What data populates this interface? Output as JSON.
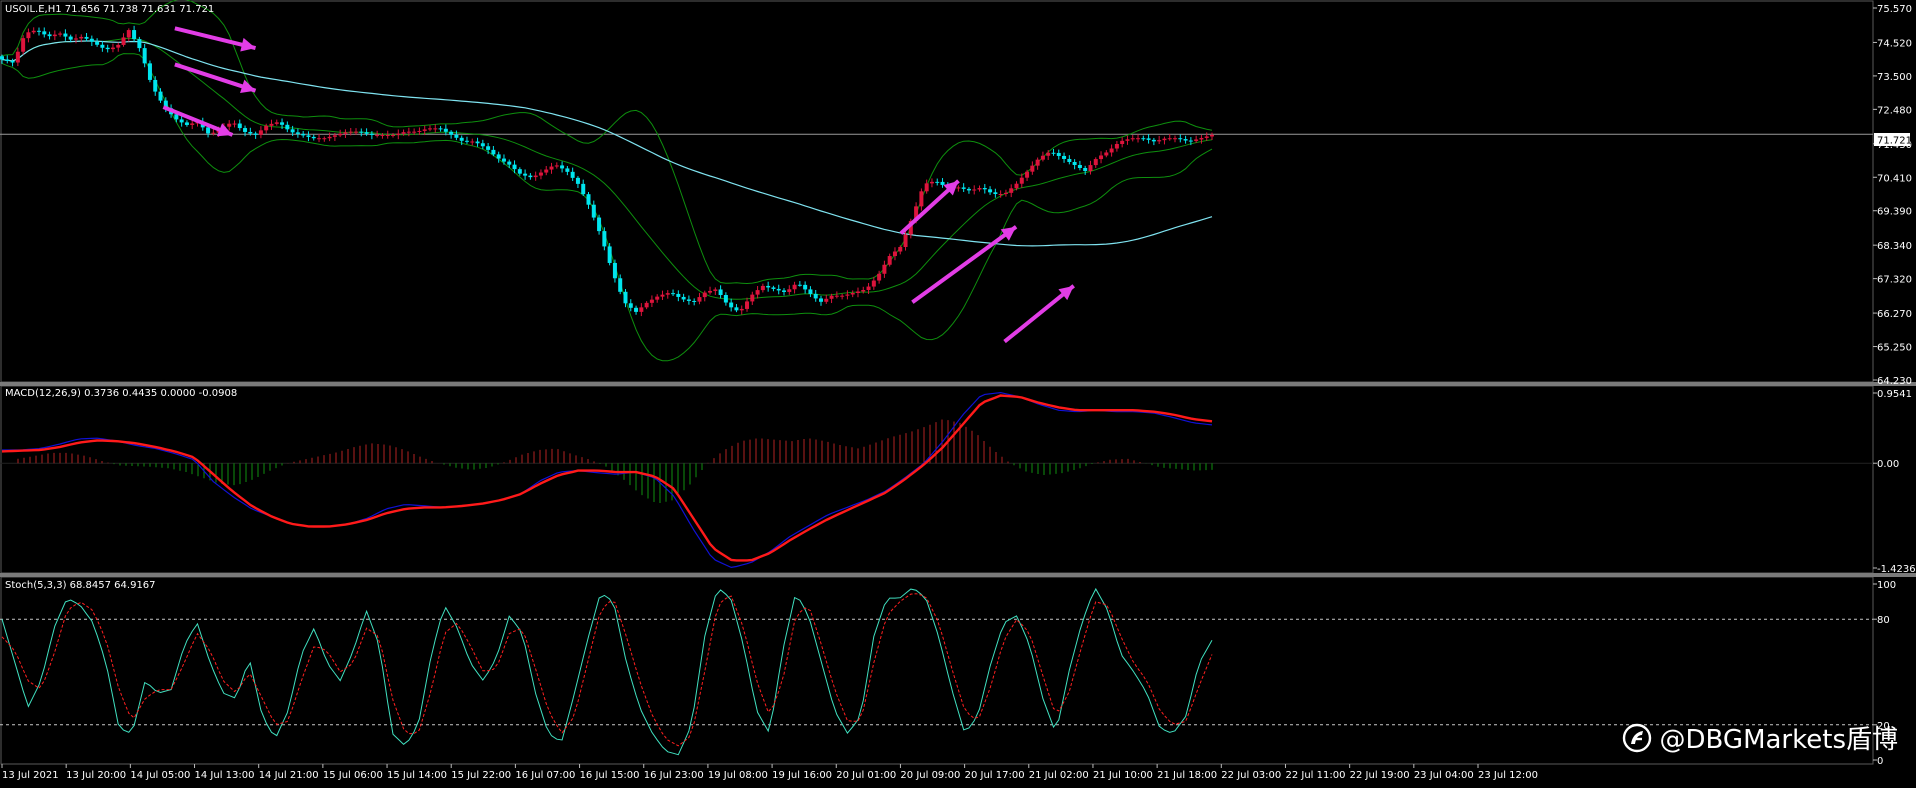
{
  "symbol_header": "USOIL.E,H1  71.656 71.738 71.631 71.721",
  "current_price_label": "71.721",
  "watermark": {
    "text": "@DBGMarkets盾博"
  },
  "colors": {
    "bull": "#dc143c",
    "bear": "#00e5ee",
    "ma": "#7fe3f0",
    "bb": "#0e8f0e",
    "macd_line": "#1111d6",
    "signal_line": "#ff1a1a",
    "arrow": "#e23de6",
    "stoch_main": "#40e0c0",
    "stoch_signal": "#ff2020"
  },
  "chart_data": [
    {
      "type": "candlestick",
      "title": "USOIL.E,H1  71.656 71.738 71.631 71.721",
      "ylim": [
        64.23,
        75.57
      ],
      "y_ticks": [
        "75.570",
        "74.520",
        "73.500",
        "72.480",
        "71.430",
        "70.410",
        "69.390",
        "68.340",
        "67.320",
        "66.270",
        "65.250",
        "64.230"
      ],
      "current_price": 71.721,
      "x_ticks": [
        "13 Jul 2021",
        "13 Jul 20:00",
        "14 Jul 05:00",
        "14 Jul 13:00",
        "14 Jul 21:00",
        "15 Jul 06:00",
        "15 Jul 14:00",
        "15 Jul 22:00",
        "16 Jul 07:00",
        "16 Jul 15:00",
        "16 Jul 23:00",
        "19 Jul 08:00",
        "19 Jul 16:00",
        "20 Jul 01:00",
        "20 Jul 09:00",
        "20 Jul 17:00",
        "21 Jul 02:00",
        "21 Jul 10:00",
        "21 Jul 18:00",
        "22 Jul 03:00",
        "22 Jul 11:00",
        "22 Jul 19:00",
        "23 Jul 04:00",
        "23 Jul 12:00"
      ],
      "close_anchors": [
        74.0,
        73.9,
        74.8,
        74.9,
        74.7,
        74.8,
        74.6,
        74.7,
        74.5,
        74.3,
        74.4,
        74.9,
        74.3,
        73.2,
        72.6,
        72.2,
        72.0,
        72.1,
        71.7,
        71.9,
        72.1,
        71.8,
        71.7,
        72.0,
        72.1,
        71.8,
        71.7,
        71.6,
        71.6,
        71.7,
        71.8,
        71.8,
        71.7,
        71.7,
        71.7,
        71.8,
        71.8,
        71.9,
        71.9,
        71.7,
        71.5,
        71.5,
        71.3,
        71.0,
        70.8,
        70.5,
        70.4,
        70.6,
        70.8,
        70.6,
        70.2,
        69.5,
        68.6,
        67.5,
        66.6,
        66.3,
        66.6,
        66.8,
        66.9,
        66.7,
        66.6,
        66.9,
        67.0,
        66.5,
        66.3,
        66.8,
        67.1,
        67.0,
        66.9,
        67.2,
        66.9,
        66.6,
        66.8,
        66.8,
        66.9,
        67.0,
        67.4,
        68.0,
        68.3,
        69.2,
        70.2,
        70.3,
        70.1,
        70.1,
        70.0,
        70.1,
        69.9,
        69.9,
        70.2,
        70.6,
        71.0,
        71.2,
        71.0,
        70.8,
        70.6,
        71.0,
        71.2,
        71.5,
        71.6,
        71.6,
        71.5,
        71.6,
        71.6,
        71.5,
        71.6,
        71.7
      ],
      "overlays": [
        "moving-average",
        "bollinger-bands"
      ],
      "annotations": [
        {
          "kind": "arrow",
          "direction": "down",
          "from": [
            15,
            74.95
          ],
          "to": [
            22,
            74.35
          ]
        },
        {
          "kind": "arrow",
          "direction": "down",
          "from": [
            15,
            73.85
          ],
          "to": [
            22,
            73.05
          ]
        },
        {
          "kind": "arrow",
          "direction": "down",
          "from": [
            14,
            72.55
          ],
          "to": [
            20,
            71.7
          ]
        },
        {
          "kind": "arrow",
          "direction": "up",
          "from": [
            78,
            68.7
          ],
          "to": [
            83,
            70.3
          ]
        },
        {
          "kind": "arrow",
          "direction": "up",
          "from": [
            79,
            66.6
          ],
          "to": [
            88,
            68.9
          ]
        },
        {
          "kind": "arrow",
          "direction": "up",
          "from": [
            87,
            65.4
          ],
          "to": [
            93,
            67.1
          ]
        }
      ]
    },
    {
      "type": "line",
      "title": "MACD(12,26,9) 0.3736 0.4435 0.0000 -0.0908",
      "ylim": [
        -1.4236,
        0.9541
      ],
      "y_ticks": [
        "0.9541",
        "0.00",
        "-1.4236"
      ],
      "series": [
        {
          "name": "MACD",
          "role": "main",
          "values": [
            0.18,
            0.18,
            0.2,
            0.26,
            0.33,
            0.34,
            0.3,
            0.24,
            0.2,
            0.13,
            0.05,
            -0.25,
            -0.45,
            -0.62,
            -0.72,
            -0.82,
            -0.86,
            -0.86,
            -0.83,
            -0.75,
            -0.62,
            -0.56,
            -0.58,
            -0.6,
            -0.58,
            -0.55,
            -0.5,
            -0.42,
            -0.24,
            -0.12,
            -0.1,
            -0.13,
            -0.15,
            -0.12,
            -0.2,
            -0.45,
            -0.9,
            -1.3,
            -1.42,
            -1.35,
            -1.2,
            -1.0,
            -0.85,
            -0.7,
            -0.6,
            -0.5,
            -0.38,
            -0.2,
            0.0,
            0.3,
            0.65,
            0.93,
            0.96,
            0.9,
            0.8,
            0.72,
            0.7,
            0.72,
            0.7,
            0.7,
            0.68,
            0.62,
            0.55,
            0.52
          ]
        },
        {
          "name": "Signal",
          "role": "signal",
          "values": [
            0.16,
            0.17,
            0.18,
            0.22,
            0.28,
            0.31,
            0.3,
            0.27,
            0.22,
            0.16,
            0.08,
            -0.15,
            -0.38,
            -0.58,
            -0.72,
            -0.82,
            -0.86,
            -0.86,
            -0.83,
            -0.77,
            -0.68,
            -0.62,
            -0.6,
            -0.6,
            -0.58,
            -0.55,
            -0.5,
            -0.42,
            -0.28,
            -0.16,
            -0.1,
            -0.1,
            -0.12,
            -0.12,
            -0.18,
            -0.35,
            -0.75,
            -1.15,
            -1.32,
            -1.32,
            -1.22,
            -1.05,
            -0.9,
            -0.76,
            -0.64,
            -0.52,
            -0.4,
            -0.22,
            -0.02,
            0.22,
            0.52,
            0.82,
            0.92,
            0.9,
            0.82,
            0.76,
            0.72,
            0.72,
            0.72,
            0.72,
            0.7,
            0.66,
            0.6,
            0.57
          ]
        }
      ],
      "histogram_pattern": [
        0.06,
        0.1,
        0.14,
        0.14,
        0.1,
        0.03,
        -0.03,
        -0.04,
        -0.05,
        -0.07,
        -0.12,
        -0.2,
        -0.28,
        -0.3,
        -0.22,
        -0.1,
        0.0,
        0.05,
        0.1,
        0.15,
        0.22,
        0.27,
        0.25,
        0.18,
        0.08,
        0.0,
        -0.06,
        -0.09,
        -0.06,
        0.02,
        0.12,
        0.18,
        0.2,
        0.12,
        0.05,
        -0.05,
        -0.22,
        -0.42,
        -0.55,
        -0.5,
        -0.28,
        0.0,
        0.18,
        0.3,
        0.34,
        0.32,
        0.3,
        0.34,
        0.3,
        0.24,
        0.2,
        0.28,
        0.36,
        0.42,
        0.5,
        0.6,
        0.55,
        0.4,
        0.18,
        0.0,
        -0.12,
        -0.16,
        -0.14,
        -0.08,
        0.0,
        0.05,
        0.06,
        0.0,
        -0.06,
        -0.08,
        -0.1,
        -0.09
      ]
    },
    {
      "type": "line",
      "title": "Stoch(5,3,3) 68.8457 64.9167",
      "ylim": [
        0,
        100
      ],
      "y_ticks": [
        "100",
        "80",
        "20",
        "0"
      ],
      "levels": [
        80,
        20
      ],
      "series": [
        {
          "name": "Main",
          "role": "main",
          "values": [
            80,
            55,
            30,
            45,
            75,
            92,
            88,
            78,
            55,
            18,
            15,
            45,
            38,
            40,
            65,
            78,
            55,
            38,
            35,
            58,
            25,
            12,
            28,
            60,
            75,
            55,
            45,
            62,
            85,
            65,
            15,
            8,
            20,
            60,
            88,
            75,
            55,
            45,
            58,
            82,
            72,
            38,
            15,
            10,
            38,
            68,
            95,
            90,
            55,
            30,
            15,
            5,
            3,
            20,
            70,
            98,
            92,
            65,
            28,
            15,
            62,
            95,
            82,
            55,
            28,
            15,
            25,
            70,
            92,
            92,
            98,
            92,
            70,
            40,
            15,
            25,
            55,
            78,
            82,
            65,
            35,
            15,
            50,
            78,
            98,
            85,
            60,
            50,
            38,
            18,
            15,
            25,
            55,
            68
          ]
        },
        {
          "name": "Signal",
          "role": "signal",
          "values": [
            70,
            62,
            45,
            40,
            60,
            85,
            90,
            85,
            68,
            40,
            22,
            35,
            40,
            40,
            55,
            72,
            62,
            45,
            38,
            50,
            35,
            20,
            22,
            45,
            65,
            62,
            50,
            55,
            75,
            70,
            35,
            15,
            15,
            40,
            72,
            78,
            65,
            50,
            52,
            72,
            75,
            52,
            28,
            15,
            25,
            55,
            85,
            92,
            70,
            45,
            25,
            12,
            8,
            14,
            50,
            88,
            94,
            75,
            45,
            25,
            45,
            82,
            88,
            65,
            40,
            22,
            22,
            55,
            82,
            90,
            95,
            93,
            78,
            52,
            28,
            22,
            42,
            68,
            80,
            72,
            48,
            25,
            38,
            65,
            90,
            88,
            70,
            55,
            45,
            28,
            20,
            22,
            42,
            60
          ]
        }
      ]
    }
  ]
}
